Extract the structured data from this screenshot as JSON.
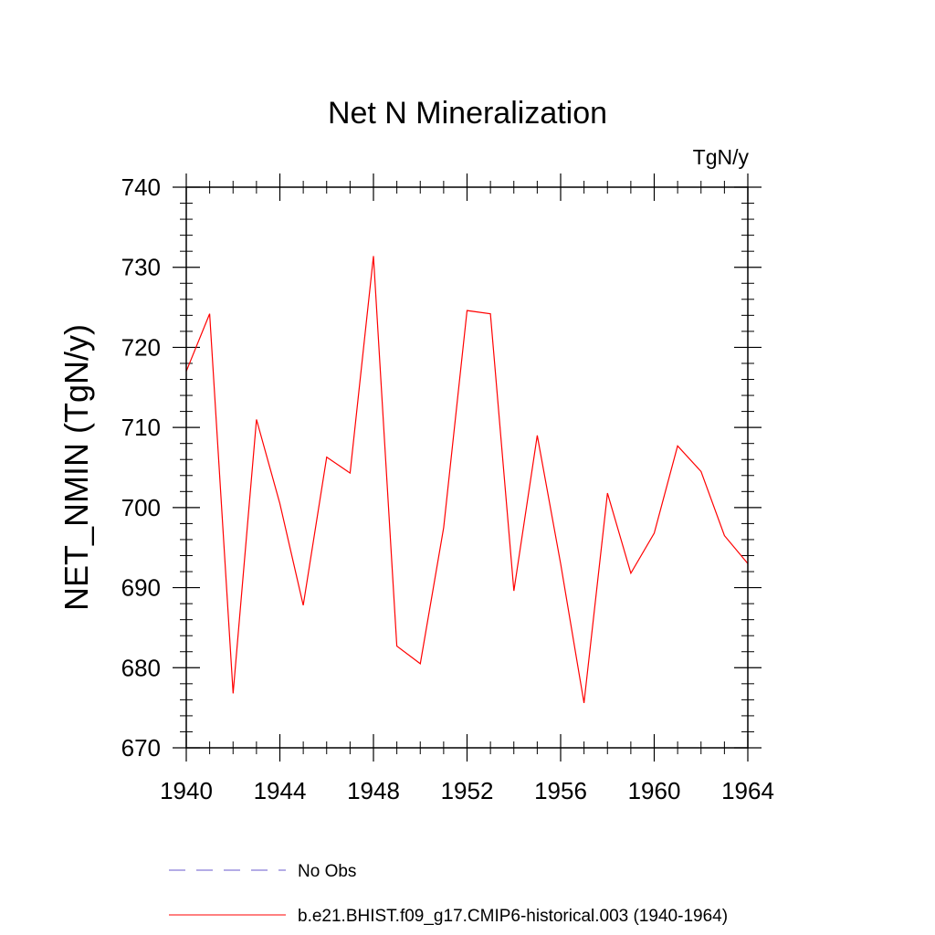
{
  "chart_data": {
    "type": "line",
    "title": "Net N Mineralization",
    "units_label": "TgN/y",
    "xlabel": "",
    "ylabel": "NET_NMIN  (TgN/y)",
    "xlim": [
      1940,
      1964
    ],
    "ylim": [
      670,
      740
    ],
    "x_ticks": [
      1940,
      1944,
      1948,
      1952,
      1956,
      1960,
      1964
    ],
    "y_ticks": [
      670,
      680,
      690,
      700,
      710,
      720,
      730,
      740
    ],
    "grid": false,
    "legend_position": "bottom",
    "series": [
      {
        "name": "b.e21.BHIST.f09_g17.CMIP6-historical.003 (1940-1964)",
        "color": "#ff0000",
        "line_style": "solid",
        "x": [
          1940,
          1941,
          1942,
          1943,
          1944,
          1945,
          1946,
          1947,
          1948,
          1949,
          1950,
          1951,
          1952,
          1953,
          1954,
          1955,
          1956,
          1957,
          1958,
          1959,
          1960,
          1961,
          1962,
          1963,
          1964
        ],
        "values": [
          717.0,
          724.2,
          676.8,
          711.0,
          700.5,
          687.8,
          706.3,
          704.3,
          731.4,
          682.7,
          680.5,
          697.5,
          724.6,
          724.2,
          689.6,
          709.0,
          693.0,
          675.6,
          701.8,
          691.8,
          696.8,
          707.7,
          704.5,
          696.5,
          693.0
        ]
      }
    ],
    "legend": [
      {
        "label": "No Obs",
        "color": "#6a5acd",
        "line_style": "dashed"
      },
      {
        "label": "b.e21.BHIST.f09_g17.CMIP6-historical.003 (1940-1964)",
        "color": "#ff0000",
        "line_style": "solid"
      }
    ]
  }
}
